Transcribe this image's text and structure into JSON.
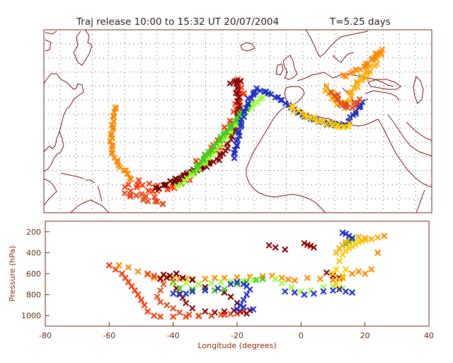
{
  "title": {
    "release": "Traj release 10:00 to 15:32 UT 20/07/2004",
    "duration": "T=5.25 days"
  },
  "colors": {
    "frame": "#6b2a10",
    "coast": "#7a1010",
    "grid": "#555555",
    "trajectories": [
      "#ff8800",
      "#ff3300",
      "#e64a19",
      "#8b0a0a",
      "#6b0000",
      "#99ff33",
      "#44cc22",
      "#ffcc00",
      "#ffaa00",
      "#1f2fc7"
    ]
  },
  "map": {
    "lon_range": [
      -80,
      40
    ],
    "lat_range": [
      -10,
      55
    ],
    "grid_lon_step": 5,
    "grid_lat_step": 5,
    "grid": true
  },
  "chart_data": {
    "type": "scatter",
    "title": "",
    "xlabel": "Longitude  (degrees)",
    "ylabel": "Pressure  (hPa)",
    "xlim": [
      -80,
      40
    ],
    "ylim": [
      1100,
      100
    ],
    "xticks": [
      "-80",
      "-60",
      "-40",
      "-20",
      "0",
      "20",
      "40"
    ],
    "yticks": [
      "200",
      "400",
      "600",
      "800",
      "1000"
    ],
    "groups": [
      {
        "color": "#ff3300",
        "points": [
          [
            -60,
            520
          ],
          [
            -58,
            560
          ],
          [
            -56,
            600
          ],
          [
            -55,
            640
          ],
          [
            -54,
            680
          ],
          [
            -53,
            720
          ],
          [
            -52,
            760
          ],
          [
            -51,
            800
          ],
          [
            -50,
            850
          ],
          [
            -49,
            900
          ],
          [
            -48,
            960
          ],
          [
            -46,
            1000
          ],
          [
            -44,
            1010
          ],
          [
            -40,
            1010
          ],
          [
            -36,
            1010
          ],
          [
            -32,
            1005
          ],
          [
            -28,
            1000
          ],
          [
            -24,
            990
          ],
          [
            -20,
            980
          ],
          [
            -18,
            960
          ]
        ]
      },
      {
        "color": "#ff8800",
        "points": [
          [
            -57,
            520
          ],
          [
            -54,
            540
          ],
          [
            -51,
            580
          ],
          [
            -48,
            610
          ],
          [
            -46,
            640
          ],
          [
            -44,
            640
          ],
          [
            -42,
            630
          ],
          [
            -40,
            640
          ],
          [
            -38,
            650
          ],
          [
            -36,
            650
          ],
          [
            -34,
            650
          ],
          [
            -30,
            650
          ],
          [
            -27,
            640
          ],
          [
            -24,
            640
          ],
          [
            -20,
            635
          ],
          [
            -16,
            630
          ],
          [
            -12,
            625
          ],
          [
            -9,
            620
          ],
          [
            -6,
            640
          ],
          [
            -4,
            655
          ],
          [
            -2,
            665
          ],
          [
            2,
            640
          ],
          [
            6,
            650
          ],
          [
            10,
            660
          ],
          [
            13,
            640
          ],
          [
            16,
            600
          ],
          [
            18,
            580
          ],
          [
            20,
            600
          ],
          [
            22,
            560
          ],
          [
            24,
            400
          ],
          [
            26,
            240
          ]
        ]
      },
      {
        "color": "#e64a19",
        "points": [
          [
            -48,
            600
          ],
          [
            -46,
            620
          ],
          [
            -44,
            650
          ],
          [
            -43,
            700
          ],
          [
            -44,
            760
          ],
          [
            -45,
            820
          ],
          [
            -44,
            870
          ],
          [
            -42,
            900
          ],
          [
            -40,
            930
          ],
          [
            -38,
            970
          ],
          [
            -35,
            990
          ],
          [
            -32,
            1000
          ],
          [
            -28,
            1000
          ],
          [
            -25,
            990
          ],
          [
            -22,
            985
          ]
        ]
      },
      {
        "color": "#8b0a0a",
        "points": [
          [
            -44,
            650
          ],
          [
            -42,
            640
          ],
          [
            -40,
            680
          ],
          [
            -39,
            740
          ],
          [
            -38,
            790
          ],
          [
            -37,
            830
          ],
          [
            -36,
            880
          ],
          [
            -34,
            930
          ],
          [
            -30,
            960
          ],
          [
            -27,
            970
          ],
          [
            -24,
            960
          ],
          [
            -21,
            950
          ],
          [
            -19,
            960
          ],
          [
            -17,
            980
          ],
          [
            -10,
            330
          ],
          [
            -8,
            350
          ],
          [
            -5,
            370
          ],
          [
            1,
            310
          ],
          [
            2,
            325
          ],
          [
            3,
            335
          ],
          [
            4,
            350
          ],
          [
            8,
            590
          ],
          [
            10,
            620
          ],
          [
            12,
            640
          ]
        ]
      },
      {
        "color": "#6b0000",
        "points": [
          [
            -43,
            610
          ],
          [
            -41,
            620
          ],
          [
            -39,
            600
          ],
          [
            -37,
            640
          ],
          [
            -34,
            660
          ],
          [
            -32,
            700
          ],
          [
            -30,
            730
          ],
          [
            -27,
            760
          ],
          [
            -24,
            780
          ],
          [
            -22,
            820
          ],
          [
            -20,
            880
          ],
          [
            -18,
            920
          ],
          [
            -16,
            950
          ]
        ]
      },
      {
        "color": "#99ff33",
        "points": [
          [
            -40,
            690
          ],
          [
            -36,
            690
          ],
          [
            -32,
            700
          ],
          [
            -28,
            690
          ],
          [
            -25,
            680
          ],
          [
            -22,
            675
          ],
          [
            -18,
            670
          ],
          [
            -15,
            660
          ],
          [
            -12,
            650
          ],
          [
            -8,
            650
          ],
          [
            -6,
            690
          ],
          [
            -3,
            730
          ],
          [
            0,
            770
          ],
          [
            3,
            760
          ],
          [
            7,
            730
          ],
          [
            10,
            720
          ],
          [
            13,
            740
          ]
        ]
      },
      {
        "color": "#44cc22",
        "points": [
          [
            -38,
            740
          ],
          [
            -34,
            750
          ],
          [
            -30,
            755
          ],
          [
            -27,
            760
          ],
          [
            -24,
            750
          ],
          [
            -20,
            700
          ],
          [
            -17,
            680
          ],
          [
            -14,
            660
          ],
          [
            -12,
            650
          ],
          [
            14,
            320
          ],
          [
            15,
            300
          ],
          [
            16,
            280
          ]
        ]
      },
      {
        "color": "#ffcc00",
        "points": [
          [
            10,
            600
          ],
          [
            11,
            560
          ],
          [
            12,
            480
          ],
          [
            13,
            420
          ],
          [
            14,
            380
          ],
          [
            15,
            360
          ],
          [
            16,
            340
          ],
          [
            17,
            320
          ],
          [
            18,
            300
          ],
          [
            19,
            290
          ],
          [
            20,
            280
          ],
          [
            14,
            560
          ],
          [
            13,
            620
          ],
          [
            12,
            660
          ],
          [
            11,
            700
          ],
          [
            12,
            730
          ]
        ]
      },
      {
        "color": "#ffaa00",
        "points": [
          [
            11,
            400
          ],
          [
            12,
            360
          ],
          [
            13,
            330
          ],
          [
            14,
            300
          ],
          [
            15,
            280
          ],
          [
            16,
            260
          ],
          [
            18,
            250
          ],
          [
            20,
            260
          ],
          [
            22,
            270
          ],
          [
            24,
            255
          ]
        ]
      },
      {
        "color": "#1f2fc7",
        "points": [
          [
            -40,
            790
          ],
          [
            -38,
            800
          ],
          [
            -36,
            790
          ],
          [
            -34,
            770
          ],
          [
            -30,
            760
          ],
          [
            -26,
            740
          ],
          [
            -22,
            700
          ],
          [
            -20,
            680
          ],
          [
            -18,
            700
          ],
          [
            -17,
            720
          ],
          [
            -16,
            750
          ],
          [
            -17,
            800
          ],
          [
            -18,
            850
          ],
          [
            -19,
            900
          ],
          [
            -20,
            940
          ],
          [
            -18,
            920
          ],
          [
            -15,
            940
          ],
          [
            -5,
            770
          ],
          [
            -2,
            780
          ],
          [
            1,
            800
          ],
          [
            4,
            790
          ],
          [
            7,
            770
          ],
          [
            10,
            760
          ],
          [
            12,
            750
          ],
          [
            14,
            770
          ],
          [
            16,
            780
          ],
          [
            13,
            210
          ],
          [
            14,
            220
          ],
          [
            15,
            240
          ],
          [
            16,
            260
          ]
        ]
      }
    ]
  }
}
